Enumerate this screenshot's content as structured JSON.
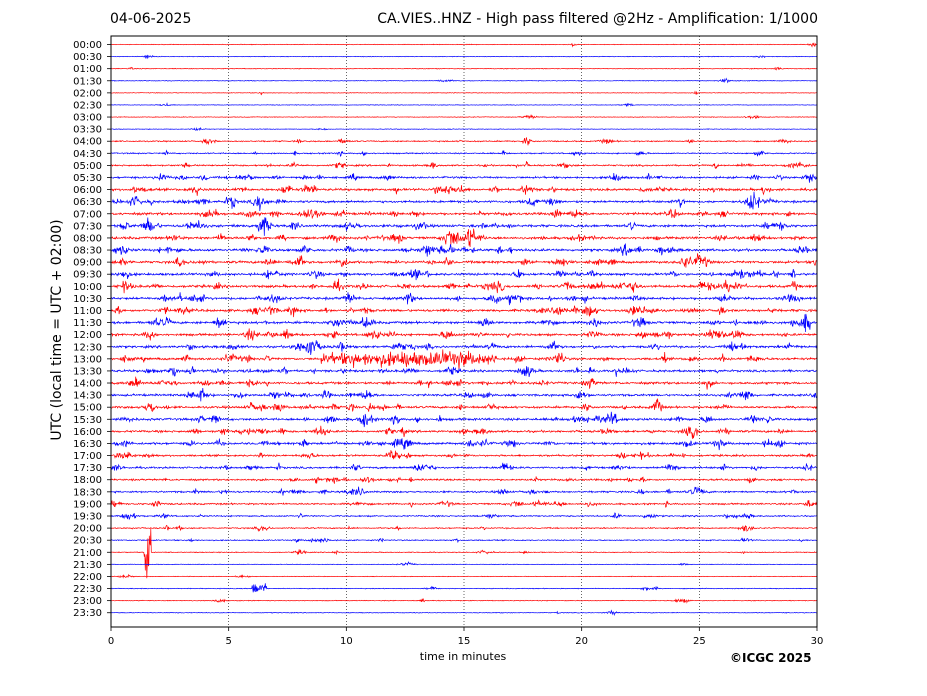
{
  "header": {
    "date": "04-06-2025",
    "title": "CA.VIES..HNZ - High pass filtered @2Hz - Amplification: 1/1000"
  },
  "footer": {
    "copyright": "©ICGC 2025"
  },
  "chart_data": {
    "type": "line",
    "title": "CA.VIES..HNZ - High pass filtered @2Hz - Amplification: 1/1000",
    "xlabel": "time in minutes",
    "ylabel": "UTC (local time = UTC + 02:00)",
    "xlim": [
      0,
      30
    ],
    "x_ticks": [
      0,
      5,
      10,
      15,
      20,
      25,
      30
    ],
    "grid": "vertical dotted at x ticks",
    "colors": {
      "even_rows": "#ff0000",
      "odd_rows": "#0000ff"
    },
    "rows": [
      {
        "label": "00:00",
        "activity": 0.05
      },
      {
        "label": "00:30",
        "activity": 0.05
      },
      {
        "label": "01:00",
        "activity": 0.08
      },
      {
        "label": "01:30",
        "activity": 0.08
      },
      {
        "label": "02:00",
        "activity": 0.05
      },
      {
        "label": "02:30",
        "activity": 0.05
      },
      {
        "label": "03:00",
        "activity": 0.08
      },
      {
        "label": "03:30",
        "activity": 0.06
      },
      {
        "label": "04:00",
        "activity": 0.3
      },
      {
        "label": "04:30",
        "activity": 0.3
      },
      {
        "label": "05:00",
        "activity": 0.45
      },
      {
        "label": "05:30",
        "activity": 0.6
      },
      {
        "label": "06:00",
        "activity": 0.7
      },
      {
        "label": "06:30",
        "activity": 0.7
      },
      {
        "label": "07:00",
        "activity": 0.75
      },
      {
        "label": "07:30",
        "activity": 0.75
      },
      {
        "label": "08:00",
        "activity": 0.75
      },
      {
        "label": "08:30",
        "activity": 0.8
      },
      {
        "label": "09:00",
        "activity": 0.75
      },
      {
        "label": "09:30",
        "activity": 0.75
      },
      {
        "label": "10:00",
        "activity": 0.8
      },
      {
        "label": "10:30",
        "activity": 0.75
      },
      {
        "label": "11:00",
        "activity": 0.75
      },
      {
        "label": "11:30",
        "activity": 0.75
      },
      {
        "label": "12:00",
        "activity": 0.7
      },
      {
        "label": "12:30",
        "activity": 0.7
      },
      {
        "label": "13:00",
        "activity": 0.7
      },
      {
        "label": "13:30",
        "activity": 0.65
      },
      {
        "label": "14:00",
        "activity": 0.7
      },
      {
        "label": "14:30",
        "activity": 0.65
      },
      {
        "label": "15:00",
        "activity": 0.65
      },
      {
        "label": "15:30",
        "activity": 0.7
      },
      {
        "label": "16:00",
        "activity": 0.65
      },
      {
        "label": "16:30",
        "activity": 0.7
      },
      {
        "label": "17:00",
        "activity": 0.55
      },
      {
        "label": "17:30",
        "activity": 0.55
      },
      {
        "label": "18:00",
        "activity": 0.5
      },
      {
        "label": "18:30",
        "activity": 0.5
      },
      {
        "label": "19:00",
        "activity": 0.45
      },
      {
        "label": "19:30",
        "activity": 0.35
      },
      {
        "label": "20:00",
        "activity": 0.3
      },
      {
        "label": "20:30",
        "activity": 0.25
      },
      {
        "label": "21:00",
        "activity": 0.15
      },
      {
        "label": "21:30",
        "activity": 0.05
      },
      {
        "label": "22:00",
        "activity": 0.05
      },
      {
        "label": "22:30",
        "activity": 0.1
      },
      {
        "label": "23:00",
        "activity": 0.1
      },
      {
        "label": "23:30",
        "activity": 0.08
      }
    ],
    "events": [
      {
        "row": "13:00",
        "start_min": 8.9,
        "end_min": 16.4,
        "amplitude": 0.9
      },
      {
        "row": "21:00",
        "start_min": 1.4,
        "end_min": 1.7,
        "amplitude": 5.0
      },
      {
        "row": "22:30",
        "start_min": 6.0,
        "end_min": 6.6,
        "amplitude": 1.0
      }
    ]
  }
}
